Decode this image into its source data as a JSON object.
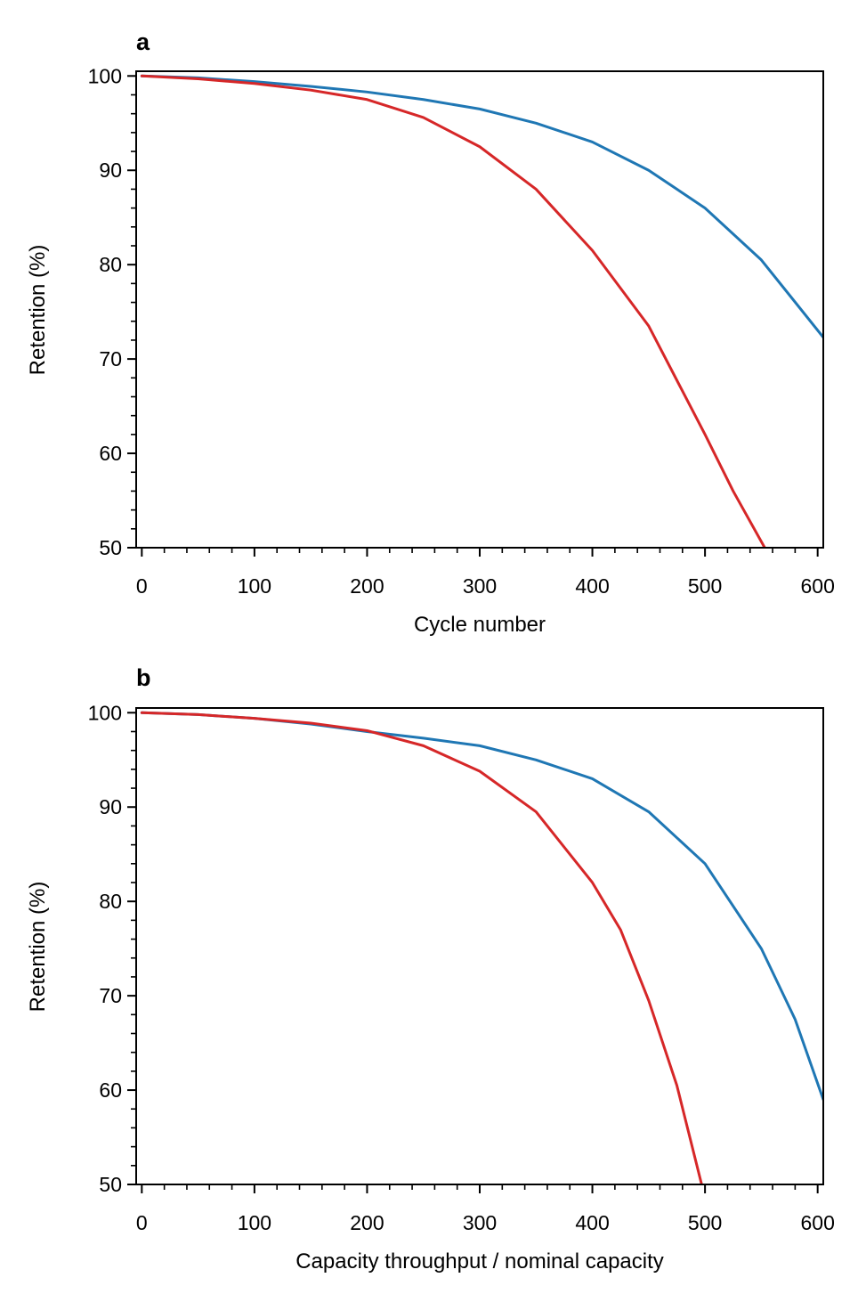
{
  "chart_data": [
    {
      "type": "line",
      "panel_label": "a",
      "title": "",
      "xlabel": "Cycle number",
      "ylabel": "Retention (%)",
      "xlim": [
        -5,
        605
      ],
      "ylim": [
        50,
        100.5
      ],
      "x_ticks": [
        0,
        100,
        200,
        300,
        400,
        500,
        600
      ],
      "y_ticks": [
        50,
        60,
        70,
        80,
        90,
        100
      ],
      "x_minor_step": 20,
      "y_minor_step": 2,
      "grid": false,
      "legend": "none",
      "series": [
        {
          "color": "#1f77b4",
          "x": [
            0,
            50,
            100,
            150,
            200,
            250,
            300,
            350,
            400,
            450,
            500,
            550,
            605
          ],
          "y": [
            100,
            99.8,
            99.4,
            98.9,
            98.3,
            97.5,
            96.5,
            95.0,
            93.0,
            90.0,
            86.0,
            80.5,
            72.3
          ]
        },
        {
          "color": "#d62728",
          "x": [
            0,
            50,
            100,
            150,
            200,
            250,
            300,
            350,
            400,
            450,
            500,
            525,
            553
          ],
          "y": [
            100,
            99.7,
            99.2,
            98.5,
            97.5,
            95.6,
            92.5,
            88.0,
            81.5,
            73.5,
            62.0,
            56.0,
            50.0
          ]
        }
      ]
    },
    {
      "type": "line",
      "panel_label": "b",
      "title": "",
      "xlabel": "Capacity throughput / nominal capacity",
      "ylabel": "Retention (%)",
      "xlim": [
        -5,
        605
      ],
      "ylim": [
        50,
        100.5
      ],
      "x_ticks": [
        0,
        100,
        200,
        300,
        400,
        500,
        600
      ],
      "y_ticks": [
        50,
        60,
        70,
        80,
        90,
        100
      ],
      "x_minor_step": 20,
      "y_minor_step": 2,
      "grid": false,
      "legend": "none",
      "series": [
        {
          "color": "#1f77b4",
          "x": [
            0,
            50,
            100,
            150,
            200,
            250,
            300,
            350,
            400,
            450,
            500,
            550,
            580,
            605
          ],
          "y": [
            100,
            99.8,
            99.4,
            98.8,
            98.0,
            97.3,
            96.5,
            95.0,
            93.0,
            89.5,
            84.0,
            75.0,
            67.5,
            59.0
          ]
        },
        {
          "color": "#d62728",
          "x": [
            0,
            50,
            100,
            150,
            200,
            250,
            300,
            350,
            400,
            425,
            450,
            475,
            497
          ],
          "y": [
            100,
            99.8,
            99.4,
            98.9,
            98.1,
            96.5,
            93.8,
            89.5,
            82.0,
            77.0,
            69.5,
            60.5,
            50.0
          ]
        }
      ]
    }
  ]
}
